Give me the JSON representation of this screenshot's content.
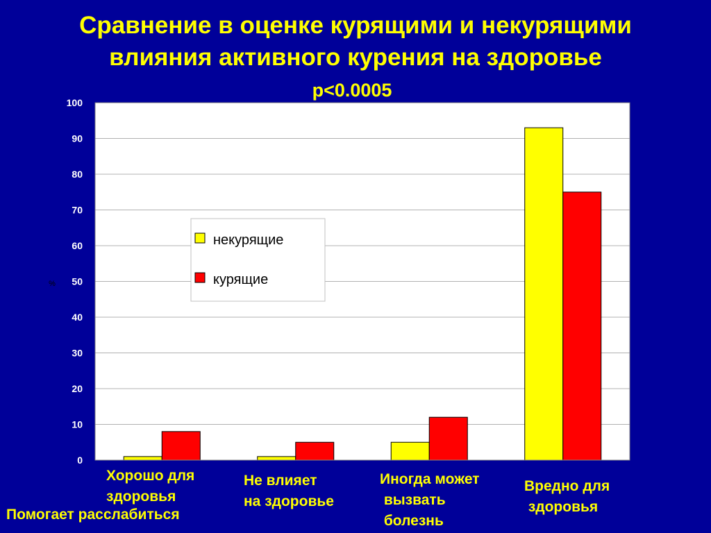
{
  "slide": {
    "title_line1": "Сравнение в оценке курящими и некурящими",
    "title_line2": "влияния  активного курения на здоровье",
    "p_value": "р<0.0005",
    "extra_label": "Помогает расслабиться"
  },
  "chart_data": {
    "type": "bar",
    "categories": [
      "Хорошо для\nздоровья",
      "Не влияет\nна здоровье",
      "Иногда может\n вызвать\n болезнь",
      "Вредно для\n здоровья"
    ],
    "series": [
      {
        "name": "некурящие",
        "color": "#ffff00",
        "values": [
          1,
          1,
          5,
          93
        ]
      },
      {
        "name": "курящие",
        "color": "#ff0000",
        "values": [
          8,
          5,
          12,
          75
        ]
      }
    ],
    "ylabel": "%",
    "ylim": [
      0,
      100
    ],
    "yticks": [
      "0",
      "10",
      "20",
      "30",
      "40",
      "50",
      "60",
      "70",
      "80",
      "90",
      "100"
    ],
    "grid": true,
    "legend": "upper-left inside plot"
  }
}
